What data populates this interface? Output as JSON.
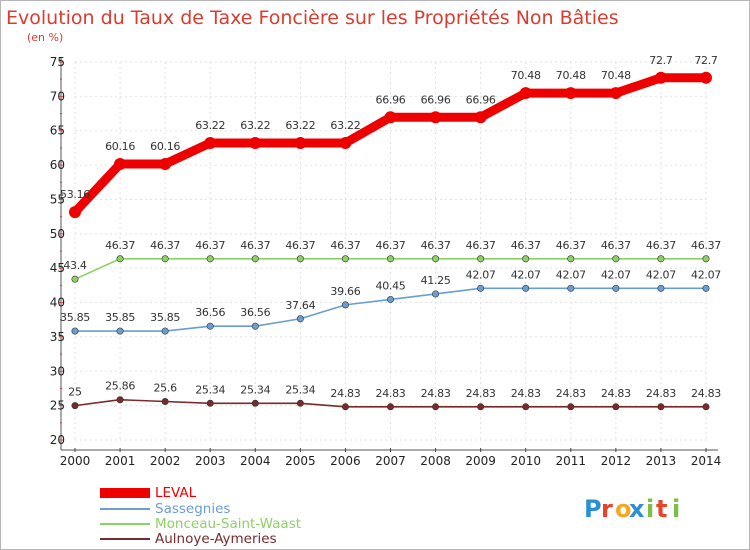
{
  "chart_data": {
    "type": "line",
    "title": "Evolution du Taux de Taxe Foncière sur les Propriétés Non Bâties",
    "subtitle": "(en %)",
    "xlabel": "",
    "ylabel": "",
    "ylim": [
      20,
      75
    ],
    "yticks": [
      "20",
      "25",
      "30",
      "35",
      "40",
      "45",
      "50",
      "55",
      "60",
      "65",
      "70",
      "75"
    ],
    "categories": [
      "2000",
      "2001",
      "2002",
      "2003",
      "2004",
      "2005",
      "2006",
      "2007",
      "2008",
      "2009",
      "2010",
      "2011",
      "2012",
      "2013",
      "2014"
    ],
    "grid": true,
    "legend_position": "bottom-left",
    "series": [
      {
        "name": "LEVAL",
        "color": "#ee0000",
        "values": [
          53.16,
          60.16,
          60.16,
          63.22,
          63.22,
          63.22,
          63.22,
          66.96,
          66.96,
          66.96,
          70.48,
          70.48,
          70.48,
          72.7,
          72.7
        ],
        "labels": [
          "53.16",
          "60.16",
          "60.16",
          "63.22",
          "63.22",
          "63.22",
          "63.22",
          "66.96",
          "66.96",
          "66.96",
          "70.48",
          "70.48",
          "70.48",
          "72.7",
          "72.7"
        ]
      },
      {
        "name": "Sassegnies",
        "color": "#6a9ed0",
        "values": [
          35.85,
          35.85,
          35.85,
          36.56,
          36.56,
          37.64,
          39.66,
          40.45,
          41.25,
          42.07,
          42.07,
          42.07,
          42.07,
          42.07,
          42.07
        ],
        "labels": [
          "35.85",
          "35.85",
          "35.85",
          "36.56",
          "36.56",
          "37.64",
          "39.66",
          "40.45",
          "41.25",
          "42.07",
          "42.07",
          "42.07",
          "42.07",
          "42.07",
          "42.07"
        ]
      },
      {
        "name": "Monceau-Saint-Waast",
        "color": "#8fd065",
        "values": [
          43.4,
          46.37,
          46.37,
          46.37,
          46.37,
          46.37,
          46.37,
          46.37,
          46.37,
          46.37,
          46.37,
          46.37,
          46.37,
          46.37,
          46.37
        ],
        "labels": [
          "43.4",
          "46.37",
          "46.37",
          "46.37",
          "46.37",
          "46.37",
          "46.37",
          "46.37",
          "46.37",
          "46.37",
          "46.37",
          "46.37",
          "46.37",
          "46.37",
          "46.37"
        ]
      },
      {
        "name": "Aulnoye-Aymeries",
        "color": "#7a2a2a",
        "values": [
          25,
          25.86,
          25.6,
          25.34,
          25.34,
          25.34,
          24.83,
          24.83,
          24.83,
          24.83,
          24.83,
          24.83,
          24.83,
          24.83,
          24.83
        ],
        "labels": [
          "25",
          "25.86",
          "25.6",
          "25.34",
          "25.34",
          "25.34",
          "24.83",
          "24.83",
          "24.83",
          "24.83",
          "24.83",
          "24.83",
          "24.83",
          "24.83",
          "24.83"
        ]
      }
    ]
  },
  "legend": {
    "items": [
      "LEVAL",
      "Sassegnies",
      "Monceau-Saint-Waast",
      "Aulnoye-Aymeries"
    ]
  },
  "logo": {
    "text": "Proxiti",
    "letters": [
      "P",
      "r",
      "o",
      "x",
      "i",
      "t",
      "i"
    ],
    "colors": [
      "#2a8fd6",
      "#e8432b",
      "#f5a623",
      "#2a8fd6",
      "#7bc043",
      "#e8432b",
      "#7bc043"
    ]
  }
}
